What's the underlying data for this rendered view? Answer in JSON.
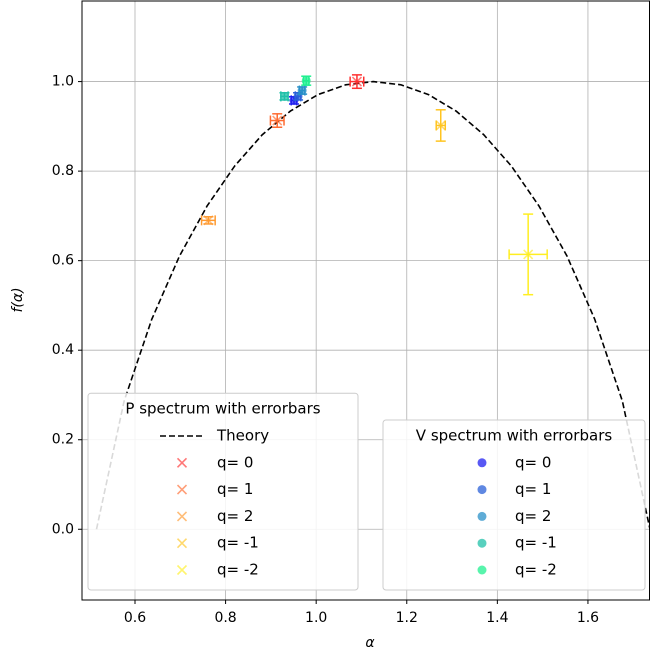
{
  "chart_data": {
    "type": "errorbar",
    "xlabel": "α",
    "ylabel": "f(α)",
    "xlim": [
      0.483,
      1.737
    ],
    "ylim": [
      -0.158,
      1.18
    ],
    "xticks": [
      0.6,
      0.8,
      {
        "value": 1.0,
        "label": "1.0"
      },
      1.2,
      1.4,
      1.6
    ],
    "yticks": [
      {
        "value": 0.0,
        "label": "0.0"
      },
      0.2,
      0.4,
      0.6,
      0.8,
      {
        "value": 1.0,
        "label": "1.0"
      }
    ],
    "grid": true,
    "groups": [
      {
        "title": "P spectrum with errorbars",
        "legend_loc": "lower left",
        "series": [
          {
            "name": "Theory",
            "color": "#000000",
            "linestyle": "dashed",
            "x": [
              0.515,
              0.576,
              0.637,
              0.698,
              0.759,
              0.82,
              0.881,
              0.943,
              1.004,
              1.065,
              1.126,
              1.187,
              1.248,
              1.309,
              1.37,
              1.431,
              1.492,
              1.554,
              1.615,
              1.676,
              1.737
            ],
            "values": [
              0,
              0.2864,
              0.469,
              0.6098,
              0.7219,
              0.8113,
              0.8813,
              0.9341,
              0.971,
              0.9928,
              1,
              0.9928,
              0.971,
              0.9341,
              0.8813,
              0.8113,
              0.7219,
              0.6098,
              0.469,
              0.2864,
              0
            ]
          },
          {
            "name": "q= 0",
            "color": "#ff3030",
            "marker": "x",
            "x": [
              1.09
            ],
            "values": [
              1.0
            ],
            "xerr": [
              0.015
            ],
            "yerr": [
              0.015
            ]
          },
          {
            "name": "q= 1",
            "color": "#ff6a30",
            "marker": "x",
            "x": [
              0.914
            ],
            "values": [
              0.913
            ],
            "xerr": [
              0.015
            ],
            "yerr": [
              0.015
            ]
          },
          {
            "name": "q= 2",
            "color": "#ff9a30",
            "marker": "x",
            "x": [
              0.762
            ],
            "values": [
              0.69
            ],
            "xerr": [
              0.015
            ],
            "yerr": [
              0.008
            ]
          },
          {
            "name": "q= -1",
            "color": "#ffc420",
            "marker": "x",
            "x": [
              1.275
            ],
            "values": [
              0.902
            ],
            "xerr": [
              0.01
            ],
            "yerr": [
              0.035
            ]
          },
          {
            "name": "q= -2",
            "color": "#ffee20",
            "marker": "x",
            "x": [
              1.468
            ],
            "values": [
              0.614
            ],
            "xerr": [
              0.042
            ],
            "yerr": [
              0.09
            ]
          }
        ]
      },
      {
        "title": "V spectrum with errorbars",
        "legend_loc": "lower right",
        "series": [
          {
            "name": "q= 0",
            "color": "#2020f0",
            "marker": "o",
            "x": [
              0.951
            ],
            "values": [
              0.958
            ],
            "xerr": [
              0.006
            ],
            "yerr": [
              0.008
            ]
          },
          {
            "name": "q= 1",
            "color": "#2a60d8",
            "marker": "o",
            "x": [
              0.96
            ],
            "values": [
              0.967
            ],
            "xerr": [
              0.006
            ],
            "yerr": [
              0.008
            ]
          },
          {
            "name": "q= 2",
            "color": "#2a90c8",
            "marker": "o",
            "x": [
              0.969
            ],
            "values": [
              0.98
            ],
            "xerr": [
              0.006
            ],
            "yerr": [
              0.008
            ]
          },
          {
            "name": "q= -1",
            "color": "#20c0a8",
            "marker": "o",
            "x": [
              0.93
            ],
            "values": [
              0.967
            ],
            "xerr": [
              0.008
            ],
            "yerr": [
              0.008
            ]
          },
          {
            "name": "q= -2",
            "color": "#20f090",
            "marker": "o",
            "x": [
              0.978
            ],
            "values": [
              1.002
            ],
            "xerr": [
              0.006
            ],
            "yerr": [
              0.01
            ]
          }
        ]
      }
    ]
  }
}
